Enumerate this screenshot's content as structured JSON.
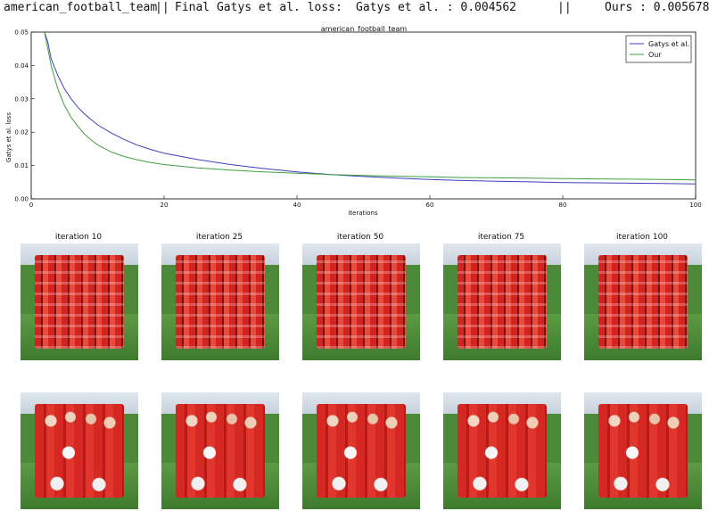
{
  "header": {
    "dataset": "american_football_team",
    "sep1": "||",
    "final_label": "Final Gatys et al. loss:",
    "gatys_label": "Gatys et al. : 0.004562",
    "sep2": "||",
    "ours_label": "Ours : 0.005678"
  },
  "chart_data": {
    "type": "line",
    "title": "american_football_team",
    "xlabel": "iterations",
    "ylabel": "Gatys et al. loss",
    "xlim": [
      0,
      100
    ],
    "ylim": [
      0.0,
      0.05
    ],
    "xticks": [
      "0",
      "20",
      "40",
      "60",
      "80",
      "100"
    ],
    "yticks": [
      "0.00",
      "0.01",
      "0.02",
      "0.03",
      "0.04",
      "0.05"
    ],
    "grid": false,
    "legend_position": "top-right",
    "series": [
      {
        "name": "Gatys et al.",
        "color": "#3f3fbf",
        "x": [
          2,
          2.5,
          3,
          4,
          5,
          6,
          7,
          8,
          9,
          10,
          12,
          14,
          16,
          18,
          20,
          25,
          30,
          35,
          40,
          45,
          50,
          55,
          60,
          65,
          70,
          75,
          80,
          85,
          90,
          95,
          100
        ],
        "y": [
          0.05,
          0.047,
          0.042,
          0.037,
          0.033,
          0.03,
          0.0275,
          0.0255,
          0.0238,
          0.0222,
          0.0198,
          0.0178,
          0.0161,
          0.0148,
          0.0137,
          0.0118,
          0.0103,
          0.0091,
          0.0081,
          0.0073,
          0.0067,
          0.0062,
          0.0058,
          0.0055,
          0.0053,
          0.0051,
          0.0049,
          0.0048,
          0.0047,
          0.0046,
          0.0045
        ]
      },
      {
        "name": "Our",
        "color": "#3f9f3f",
        "x": [
          2,
          2.5,
          3,
          4,
          5,
          6,
          7,
          8,
          9,
          10,
          12,
          14,
          16,
          18,
          20,
          25,
          30,
          35,
          40,
          45,
          50,
          55,
          60,
          65,
          70,
          75,
          80,
          85,
          90,
          95,
          100
        ],
        "y": [
          0.05,
          0.045,
          0.04,
          0.033,
          0.028,
          0.0245,
          0.0218,
          0.0195,
          0.0177,
          0.0162,
          0.0141,
          0.0127,
          0.0117,
          0.0109,
          0.0103,
          0.0093,
          0.0086,
          0.0081,
          0.0077,
          0.0073,
          0.007,
          0.0068,
          0.0066,
          0.0064,
          0.0063,
          0.0062,
          0.0061,
          0.006,
          0.0059,
          0.0058,
          0.0057
        ]
      }
    ]
  },
  "iterations": {
    "titles": [
      "iteration 10",
      "iteration 25",
      "iteration 50",
      "iteration 75",
      "iteration 100"
    ]
  }
}
